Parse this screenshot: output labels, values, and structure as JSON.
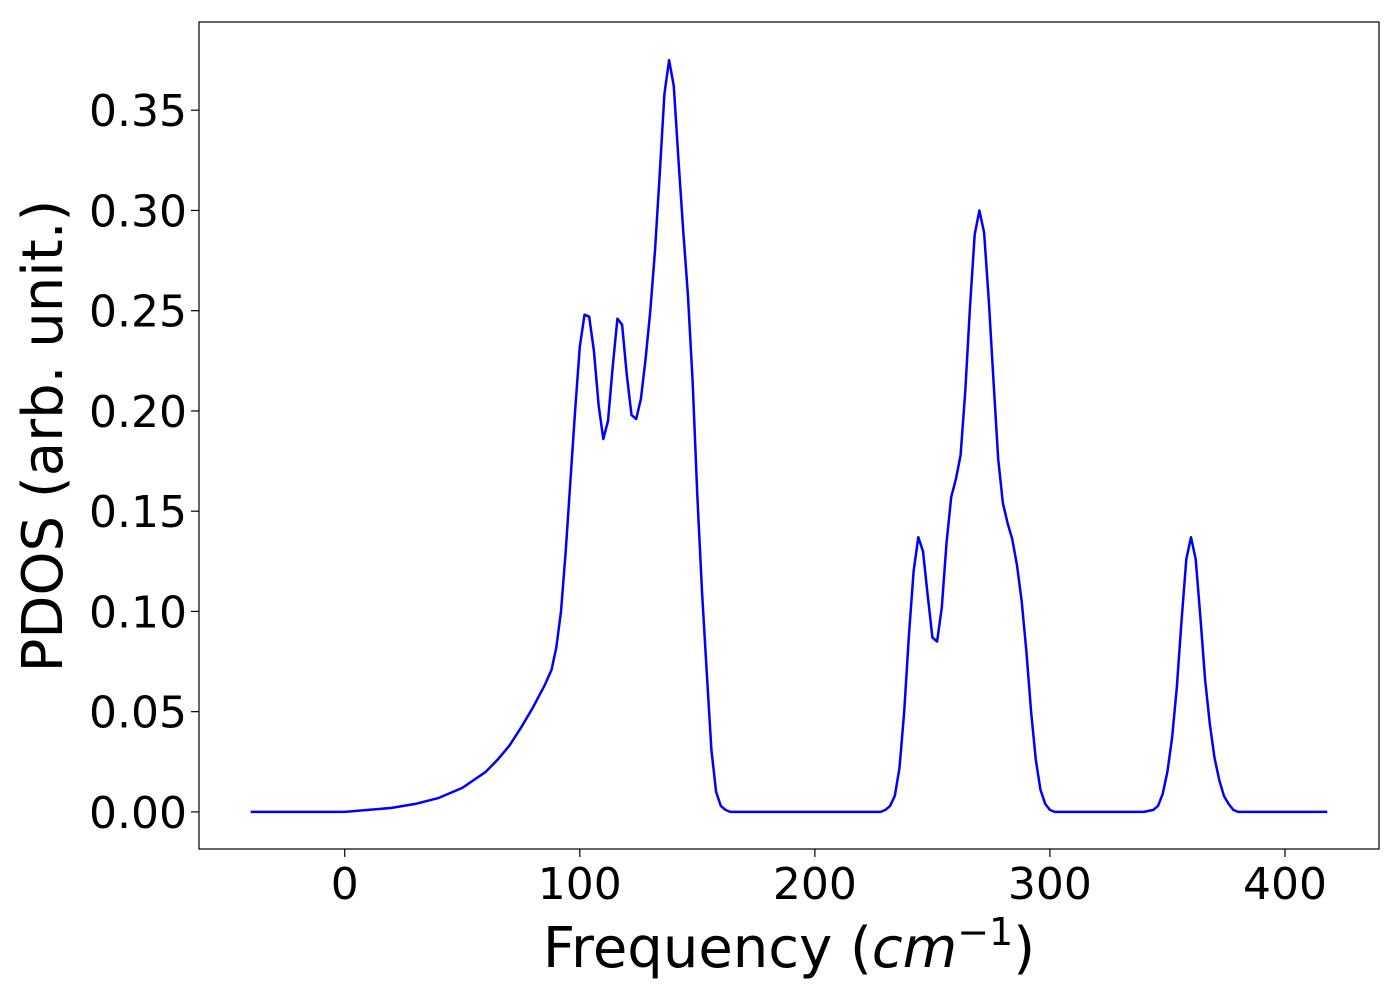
{
  "chart_data": {
    "type": "line",
    "title": "",
    "xlabel": "Frequency (",
    "xlabel_math": "cm",
    "xlabel_sup": "−1",
    "xlabel_close": ")",
    "ylabel": "PDOS (arb. unit.)",
    "xlim": [
      -62,
      440
    ],
    "ylim": [
      -0.0185,
      0.394
    ],
    "xticks": [
      0,
      100,
      200,
      300,
      400
    ],
    "xtick_labels": [
      "0",
      "100",
      "200",
      "300",
      "400"
    ],
    "yticks": [
      0.0,
      0.05,
      0.1,
      0.15,
      0.2,
      0.25,
      0.3,
      0.35
    ],
    "ytick_labels": [
      "0.00",
      "0.05",
      "0.10",
      "0.15",
      "0.20",
      "0.25",
      "0.30",
      "0.35"
    ],
    "grid": false,
    "series": [
      {
        "color": "#0000ff",
        "x": [
          -40,
          -20,
          0,
          10,
          20,
          30,
          40,
          50,
          60,
          65,
          70,
          75,
          80,
          85,
          88,
          90,
          92,
          94,
          96,
          98,
          100,
          102,
          104,
          106,
          108,
          110,
          112,
          114,
          116,
          118,
          120,
          122,
          124,
          126,
          128,
          130,
          132,
          134,
          136,
          138,
          140,
          142,
          144,
          146,
          148,
          150,
          152,
          154,
          156,
          158,
          160,
          162,
          164,
          166,
          168,
          170,
          180,
          200,
          220,
          228,
          230,
          232,
          234,
          236,
          238,
          240,
          242,
          244,
          246,
          248,
          250,
          252,
          254,
          256,
          258,
          260,
          262,
          264,
          266,
          268,
          270,
          272,
          274,
          276,
          278,
          280,
          282,
          284,
          286,
          288,
          290,
          292,
          294,
          296,
          298,
          300,
          302,
          304,
          306,
          308,
          310,
          320,
          340,
          344,
          346,
          348,
          350,
          352,
          354,
          356,
          358,
          360,
          362,
          364,
          366,
          368,
          370,
          372,
          374,
          376,
          378,
          380,
          382,
          384,
          386,
          390,
          400,
          418
        ],
        "y": [
          0.0,
          0.0,
          0.0,
          0.001,
          0.002,
          0.004,
          0.007,
          0.012,
          0.02,
          0.026,
          0.033,
          0.042,
          0.052,
          0.063,
          0.071,
          0.082,
          0.1,
          0.13,
          0.165,
          0.2,
          0.232,
          0.248,
          0.247,
          0.23,
          0.203,
          0.186,
          0.195,
          0.222,
          0.246,
          0.243,
          0.218,
          0.198,
          0.196,
          0.206,
          0.226,
          0.25,
          0.28,
          0.318,
          0.358,
          0.375,
          0.362,
          0.325,
          0.29,
          0.258,
          0.215,
          0.158,
          0.11,
          0.07,
          0.031,
          0.01,
          0.003,
          0.001,
          0.0,
          0.0,
          0.0,
          0.0,
          0.0,
          0.0,
          0.0,
          0.0,
          0.001,
          0.003,
          0.008,
          0.022,
          0.05,
          0.088,
          0.12,
          0.137,
          0.13,
          0.108,
          0.087,
          0.085,
          0.102,
          0.134,
          0.157,
          0.166,
          0.178,
          0.21,
          0.252,
          0.288,
          0.3,
          0.289,
          0.255,
          0.215,
          0.176,
          0.154,
          0.144,
          0.136,
          0.123,
          0.105,
          0.08,
          0.05,
          0.026,
          0.011,
          0.004,
          0.001,
          0.0,
          0.0,
          0.0,
          0.0,
          0.0,
          0.0,
          0.0,
          0.001,
          0.003,
          0.009,
          0.02,
          0.037,
          0.062,
          0.095,
          0.126,
          0.137,
          0.126,
          0.097,
          0.066,
          0.044,
          0.027,
          0.016,
          0.008,
          0.004,
          0.001,
          0.0,
          0.0,
          0.0,
          0.0,
          0.0,
          0.0,
          0.0
        ]
      }
    ]
  }
}
